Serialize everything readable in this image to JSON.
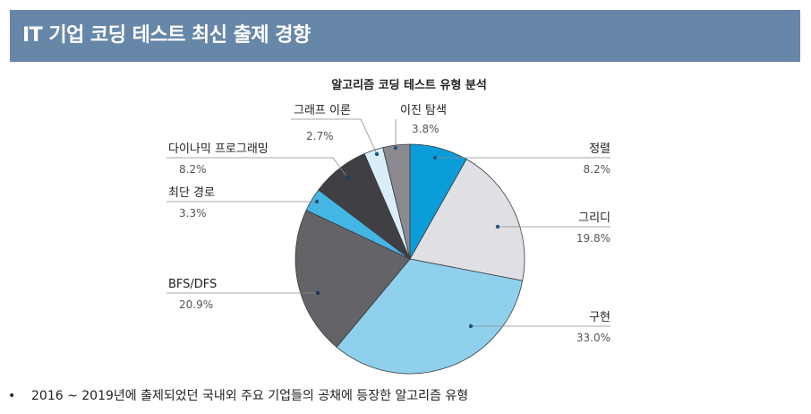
{
  "header": {
    "title": "IT 기업 코딩 테스트 최신 출제 경향"
  },
  "chart_data": {
    "type": "pie",
    "title": "알고리즘 코딩 테스트 유형 분석",
    "slices": [
      {
        "label": "정렬",
        "value_label": "8.2%",
        "value": 8.2,
        "color": "#0a9dd9"
      },
      {
        "label": "그리디",
        "value_label": "19.8%",
        "value": 19.8,
        "color": "#e0e0e4"
      },
      {
        "label": "구현",
        "value_label": "33.0%",
        "value": 33.0,
        "color": "#8fd0ec"
      },
      {
        "label": "BFS/DFS",
        "value_label": "20.9%",
        "value": 20.9,
        "color": "#646468"
      },
      {
        "label": "최단 경로",
        "value_label": "3.3%",
        "value": 3.3,
        "color": "#45b5e4"
      },
      {
        "label": "다이나믹 프로그래밍",
        "value_label": "8.2%",
        "value": 8.2,
        "color": "#3f3f44"
      },
      {
        "label": "그래프 이론",
        "value_label": "2.7%",
        "value": 2.7,
        "color": "#d9eef8"
      },
      {
        "label": "이진 탐색",
        "value_label": "3.8%",
        "value": 3.8,
        "color": "#8a8a90"
      }
    ]
  },
  "footnote": {
    "bullet": "•",
    "text": "2016 ~ 2019년에 출제되었던 국내외 주요 기업들의 공채에 등장한 알고리즘 유형"
  }
}
